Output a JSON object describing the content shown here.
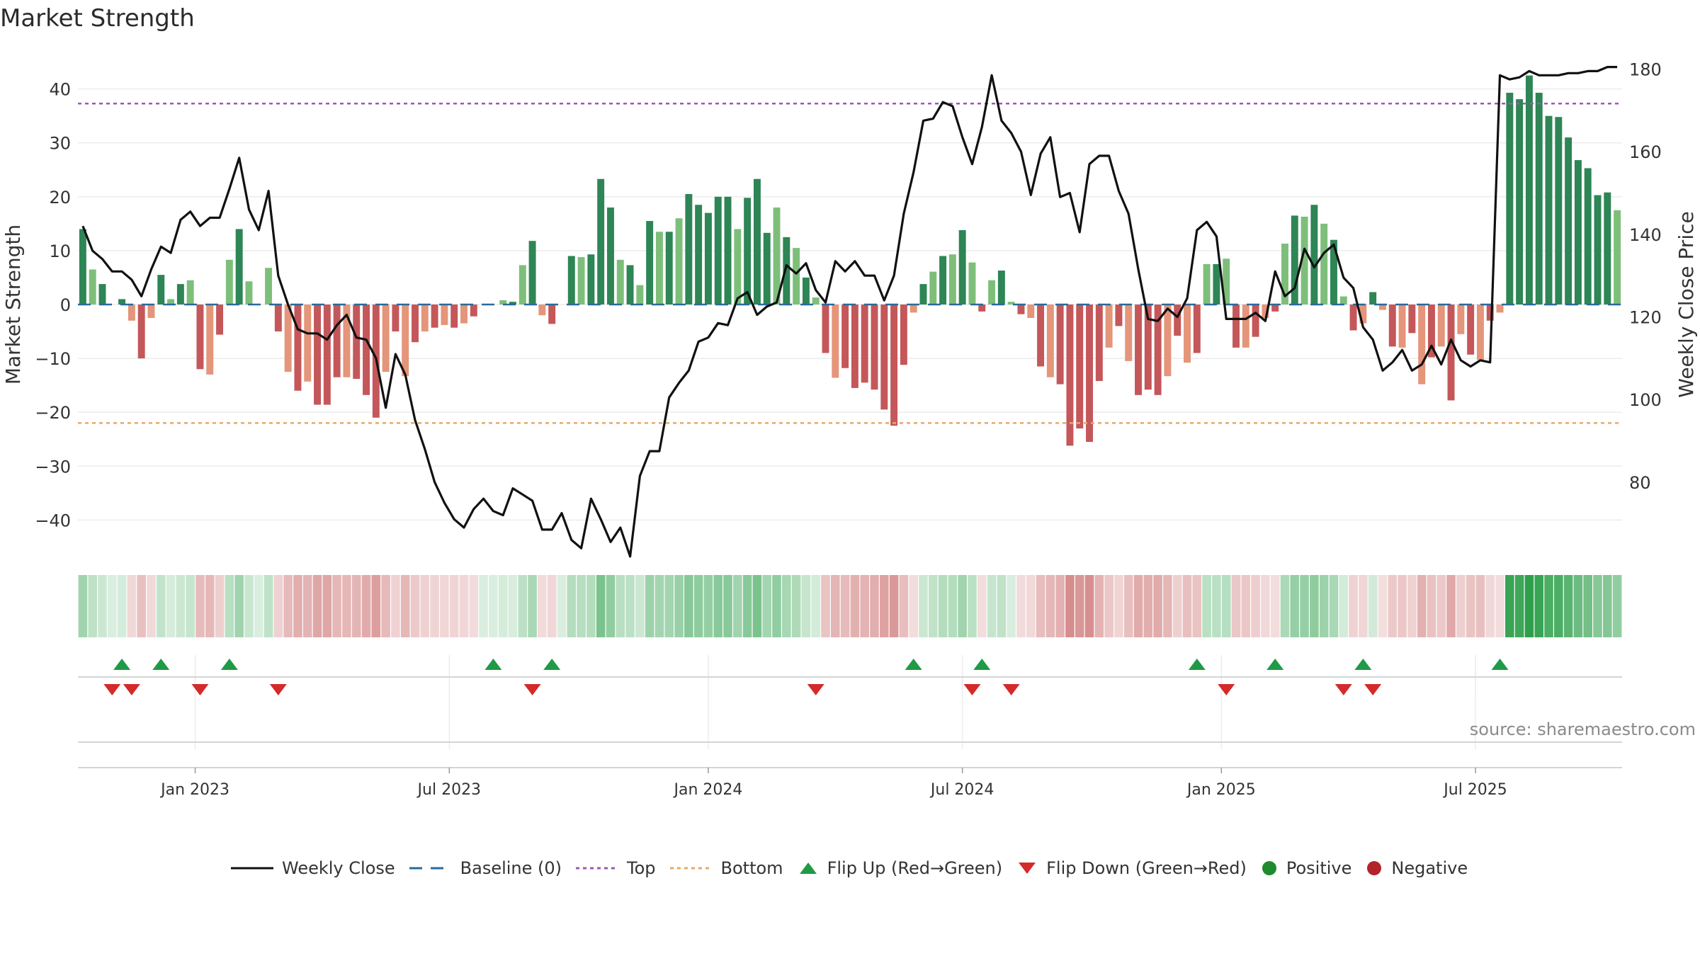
{
  "title": "Market Strength",
  "source": "source: sharemaestro.com",
  "chart_data": {
    "type": "bar",
    "y_left": {
      "label": "Market Strength",
      "range": [
        -46,
        46
      ],
      "ticks": [
        40,
        30,
        20,
        10,
        0,
        -10,
        -20,
        -30,
        -40
      ],
      "tick_labels": [
        "40",
        "30",
        "20",
        "10",
        "0",
        "−10",
        "−20",
        "−30",
        "−40"
      ]
    },
    "y_right": {
      "label": "Weekly Close Price",
      "range": [
        63,
        183
      ],
      "ticks": [
        180,
        160,
        140,
        120,
        100,
        80
      ],
      "tick_labels": [
        "180",
        "160",
        "140",
        "120",
        "100",
        "80"
      ]
    },
    "x_axis": {
      "start": "2022-10-14",
      "week_count": 158,
      "ticks": [
        {
          "label": "Jan 2023",
          "week": 12
        },
        {
          "label": "Jul 2023",
          "week": 38
        },
        {
          "label": "Jan 2024",
          "week": 64.5
        },
        {
          "label": "Jul 2024",
          "week": 90.5
        },
        {
          "label": "Jan 2025",
          "week": 117
        },
        {
          "label": "Jul 2025",
          "week": 143
        }
      ]
    },
    "top_line": 37.3,
    "bottom_line": -22,
    "strength": [
      14,
      6.5,
      3.8,
      0,
      1,
      -3,
      -10,
      -2.5,
      5.5,
      1,
      3.8,
      4.5,
      -12,
      -13,
      -5.6,
      8.3,
      14,
      4.3,
      0,
      6.8,
      -5,
      -12.5,
      -16,
      -14.3,
      -18.6,
      -18.6,
      -13.5,
      -13.5,
      -13.8,
      -16.8,
      -21,
      -12.5,
      -5,
      -13.3,
      -7,
      -5,
      -4.3,
      -3.8,
      -4.3,
      -3.5,
      -2.2,
      0,
      0,
      0.8,
      0.5,
      7.3,
      11.8,
      -2,
      -3.6,
      0,
      9,
      8.8,
      9.3,
      23.3,
      18,
      8.3,
      7.3,
      3.6,
      15.5,
      13.5,
      13.5,
      16,
      20.5,
      18.5,
      17,
      20,
      20,
      14,
      19.8,
      23.3,
      13.3,
      18,
      12.5,
      10.5,
      5,
      1.3,
      -9,
      -13.6,
      -11.8,
      -15.5,
      -14.5,
      -15.8,
      -19.5,
      -22.5,
      -11.2,
      -1.5,
      3.8,
      6.1,
      9,
      9.3,
      13.8,
      7.8,
      -1.3,
      4.5,
      6.3,
      0.5,
      -1.8,
      -2.5,
      -11.5,
      -13.5,
      -14.8,
      -26.2,
      -23,
      -25.5,
      -14.2,
      -8,
      -4,
      -10.5,
      -16.8,
      -15.8,
      -16.8,
      -13.3,
      -5.8,
      -10.8,
      -9,
      7.5,
      7.5,
      8.5,
      -8,
      -8,
      -6,
      -2.5,
      -1.3,
      11.3,
      16.5,
      16.3,
      18.5,
      15,
      12,
      1.5,
      -4.8,
      -3.5,
      2.3,
      -1,
      -7.8,
      -8,
      -5.3,
      -14.8,
      -9.8,
      -7.8,
      -17.8,
      -5.5,
      -9.3,
      -10.3,
      -3,
      -1.5,
      39.3,
      38.1,
      42.5,
      39.3,
      35,
      34.8,
      31,
      26.8,
      25.3,
      20.3,
      20.8,
      17.5
    ],
    "weekly_close": [
      142,
      136,
      134,
      131,
      131,
      129,
      125,
      131.5,
      137,
      135.5,
      143.5,
      145.5,
      142,
      144,
      144,
      151,
      158.5,
      146,
      141,
      150.5,
      130,
      123,
      117,
      116,
      116,
      114.5,
      118,
      120.5,
      115,
      114.5,
      110,
      98,
      111,
      106,
      95,
      88,
      80,
      75,
      71,
      69,
      73.5,
      76,
      73,
      72,
      78.5,
      77,
      75.5,
      68.5,
      68.5,
      72.5,
      66,
      64,
      76,
      71,
      65.5,
      69,
      62,
      81.5,
      87.5,
      87.5,
      100.5,
      104,
      107,
      114,
      115,
      118.5,
      118,
      124.5,
      126,
      120.5,
      122.5,
      123.5,
      132.5,
      130.5,
      133,
      126.5,
      123.5,
      133.5,
      131,
      133.5,
      130,
      130,
      124,
      130,
      145,
      155,
      167.5,
      168,
      172,
      171,
      163.5,
      157,
      166,
      178.5,
      167.5,
      164.5,
      160,
      149.5,
      159.5,
      163.5,
      149,
      150,
      140.5,
      157,
      159,
      159,
      150.5,
      145,
      131.5,
      119.5,
      119,
      122,
      120,
      124.5,
      141,
      143,
      139.5,
      119.5,
      119.5,
      119.5,
      121,
      119,
      131,
      125,
      127,
      136.5,
      132,
      135.5,
      137.5,
      129.5,
      127,
      117.5,
      114.5,
      107,
      109,
      112,
      107,
      108.5,
      113,
      108.5,
      114.5,
      109.5,
      108,
      109.5,
      109,
      178.5,
      177.5,
      178,
      179.5,
      178.5,
      178.5,
      178.5,
      179,
      179,
      179.5,
      179.5,
      180.5,
      180.5
    ],
    "flip_up_weeks": [
      4,
      8,
      15,
      42,
      48,
      85,
      92,
      114,
      122,
      131,
      145
    ],
    "flip_down_weeks": [
      3,
      5,
      12,
      20,
      46,
      75,
      91,
      95,
      117,
      129,
      132
    ],
    "colors": {
      "dark_green": "#2e8555",
      "light_green": "#7dbf7a",
      "dark_red": "#c4575a",
      "light_red": "#e4957a",
      "close_line": "#111111",
      "baseline": "#2a6a9a",
      "top": "#9b59b6",
      "bottom": "#e8a76b",
      "flip_up": "#1f9a45",
      "flip_down": "#d42a2a",
      "positive": "#1f8a2e",
      "negative": "#b3232b"
    }
  },
  "legend": [
    {
      "key": "close",
      "label": "Weekly Close"
    },
    {
      "key": "baseline",
      "label": "Baseline (0)"
    },
    {
      "key": "top",
      "label": "Top"
    },
    {
      "key": "bottom",
      "label": "Bottom"
    },
    {
      "key": "flip_up",
      "label": "Flip Up (Red→Green)"
    },
    {
      "key": "flip_down",
      "label": "Flip Down (Green→Red)"
    },
    {
      "key": "positive",
      "label": "Positive"
    },
    {
      "key": "negative",
      "label": "Negative"
    }
  ]
}
